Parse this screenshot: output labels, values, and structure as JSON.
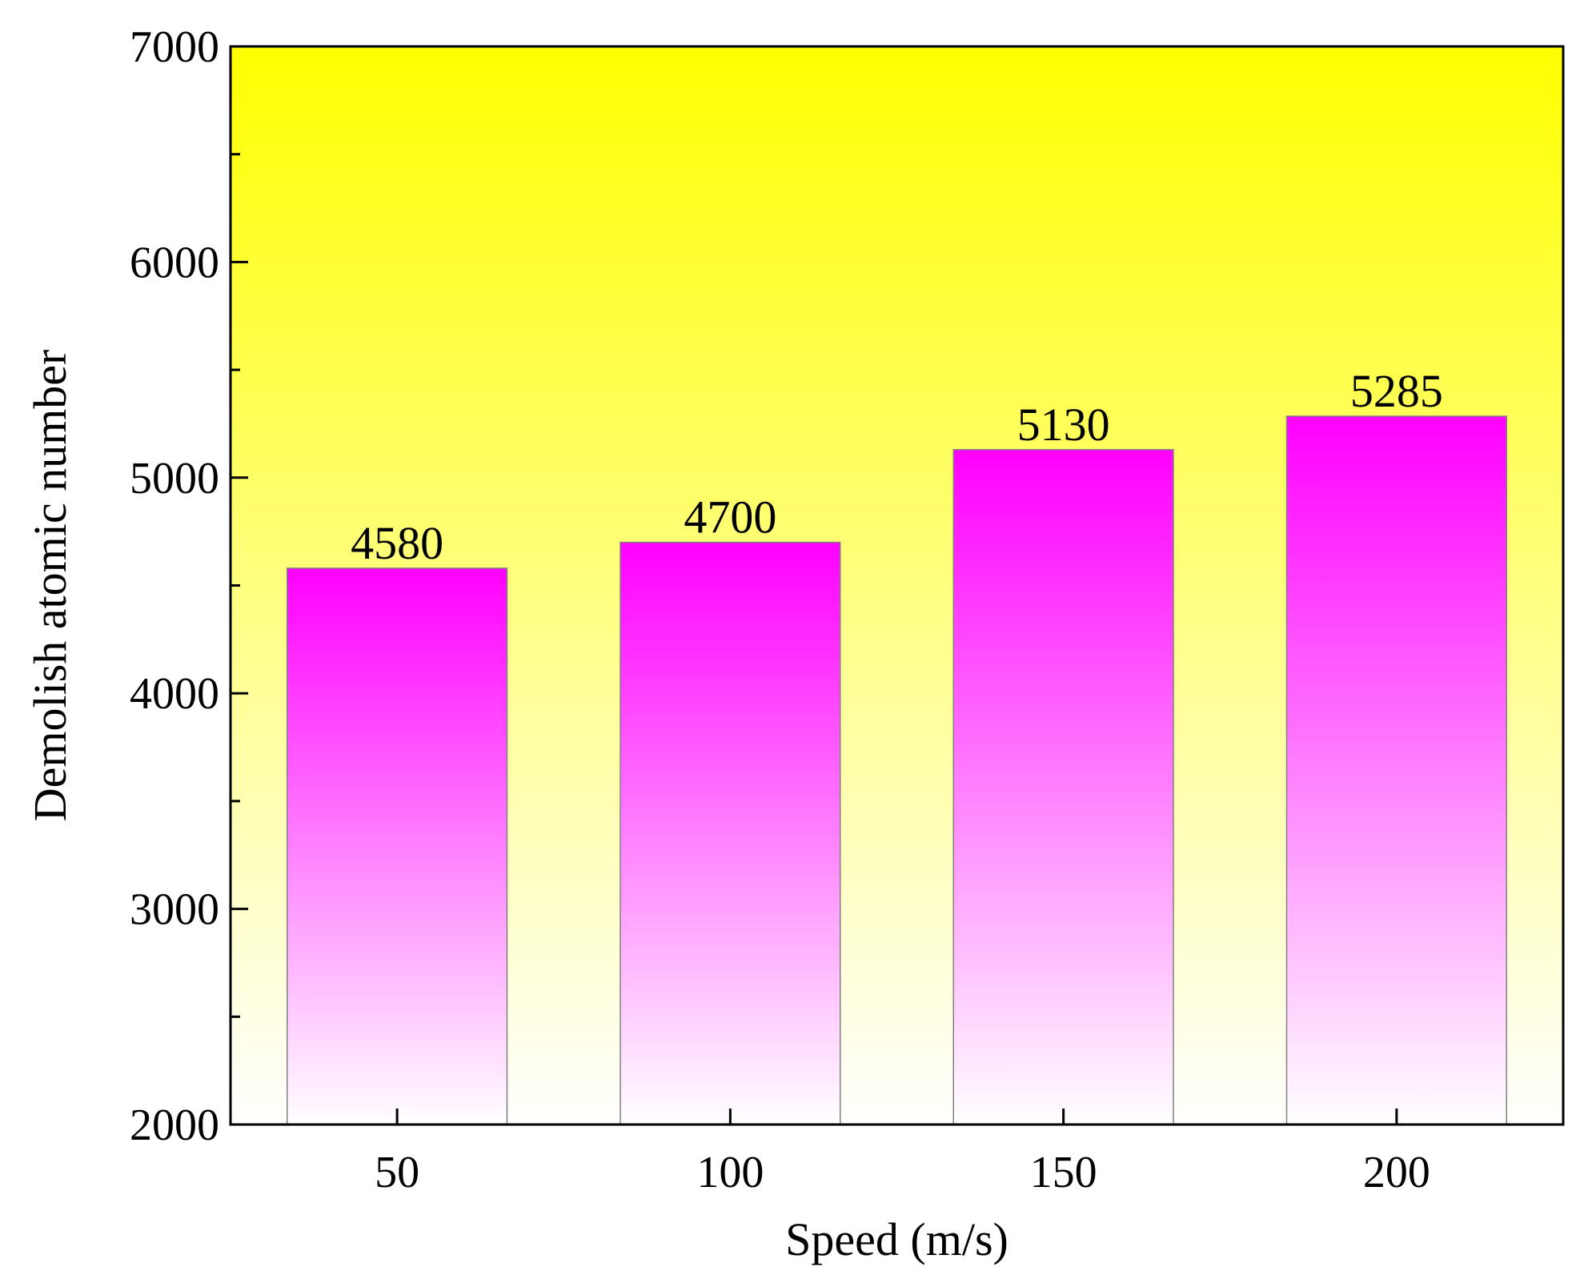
{
  "chart_data": {
    "type": "bar",
    "categories": [
      "50",
      "100",
      "150",
      "200"
    ],
    "values": [
      4580,
      4700,
      5130,
      5285
    ],
    "data_labels": [
      "4580",
      "4700",
      "5130",
      "5285"
    ],
    "xlabel": "Speed (m/s)",
    "ylabel": "Demolish atomic number",
    "ylim": [
      2000,
      7000
    ],
    "yticks": [
      2000,
      3000,
      4000,
      5000,
      6000,
      7000
    ],
    "yticks_labels": [
      "2000",
      "3000",
      "4000",
      "5000",
      "6000",
      "7000"
    ],
    "grid": false,
    "legend": "none",
    "colors": {
      "background_top": "#ffff00",
      "background_bottom": "#ffffff",
      "bar_top": "#ff00ff",
      "bar_bottom": "#ffffff",
      "axis": "#000000",
      "bar_edge": "#808080"
    }
  }
}
